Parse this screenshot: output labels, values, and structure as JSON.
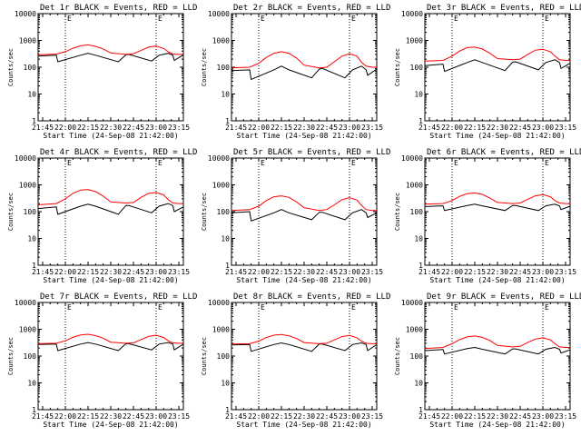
{
  "figure": {
    "background": "#ffffff",
    "axis_color": "#000000"
  },
  "chart_data": [
    {
      "type": "line",
      "title": "Det 1r BLACK = Events, RED = LLD",
      "xlabel": "Start Time (24-Sep-08 21:42:00)",
      "ylabel": "Counts/sec",
      "xlim": [
        "21:42",
        "23:18"
      ],
      "ylim": [
        1,
        10000
      ],
      "yscale": "log",
      "x_ticks": [
        "21:45",
        "22:00",
        "22:15",
        "22:30",
        "22:45",
        "23:00",
        "23:15"
      ],
      "y_ticks": [
        "1",
        "10",
        "100",
        "1000",
        "10000"
      ],
      "vlines": [
        "22:00",
        "23:00"
      ],
      "marker": "E",
      "series": [
        {
          "color": "#000000",
          "x": [
            "21:42",
            "21:54",
            "21:55",
            "22:10",
            "22:15",
            "22:20",
            "22:35",
            "22:40",
            "22:42",
            "22:57",
            "23:02",
            "23:08",
            "23:11",
            "23:12",
            "23:18"
          ],
          "y": [
            260,
            280,
            160,
            280,
            330,
            280,
            160,
            290,
            300,
            170,
            280,
            330,
            280,
            180,
            290
          ]
        },
        {
          "color": "#ff0000",
          "x": [
            "21:42",
            "21:54",
            "22:00",
            "22:05",
            "22:10",
            "22:15",
            "22:20",
            "22:25",
            "22:30",
            "22:40",
            "22:45",
            "22:50",
            "22:55",
            "23:00",
            "23:05",
            "23:08",
            "23:11",
            "23:15",
            "23:18"
          ],
          "y": [
            290,
            310,
            380,
            510,
            630,
            680,
            600,
            480,
            340,
            300,
            320,
            420,
            560,
            620,
            500,
            380,
            310,
            300,
            300
          ]
        }
      ]
    },
    {
      "type": "line",
      "title": "Det 2r BLACK = Events, RED = LLD",
      "xlabel": "Start Time (24-Sep-08 21:42:00)",
      "ylabel": "Counts/sec",
      "xlim": [
        "21:42",
        "23:18"
      ],
      "ylim": [
        1,
        10000
      ],
      "yscale": "log",
      "x_ticks": [
        "21:45",
        "22:00",
        "22:15",
        "22:30",
        "22:45",
        "23:00",
        "23:15"
      ],
      "y_ticks": [
        "1",
        "10",
        "100",
        "1000",
        "10000"
      ],
      "vlines": [
        "22:00",
        "23:00"
      ],
      "marker": "E",
      "series": [
        {
          "color": "#000000",
          "x": [
            "21:42",
            "21:54",
            "21:55",
            "22:10",
            "22:15",
            "22:20",
            "22:35",
            "22:40",
            "22:42",
            "22:57",
            "23:02",
            "23:08",
            "23:11",
            "23:12",
            "23:18"
          ],
          "y": [
            75,
            80,
            35,
            80,
            110,
            80,
            40,
            85,
            90,
            40,
            80,
            110,
            80,
            50,
            85
          ]
        },
        {
          "color": "#ff0000",
          "x": [
            "21:42",
            "21:54",
            "22:00",
            "22:05",
            "22:10",
            "22:15",
            "22:20",
            "22:25",
            "22:30",
            "22:40",
            "22:45",
            "22:50",
            "22:55",
            "23:00",
            "23:05",
            "23:08",
            "23:11",
            "23:15",
            "23:18"
          ],
          "y": [
            95,
            100,
            140,
            230,
            330,
            380,
            330,
            220,
            120,
            95,
            100,
            160,
            260,
            320,
            260,
            150,
            110,
            100,
            100
          ]
        }
      ]
    },
    {
      "type": "line",
      "title": "Det 3r BLACK = Events, RED = LLD",
      "xlabel": "Start Time (24-Sep-08 21:42:00)",
      "ylabel": "Counts/sec",
      "xlim": [
        "21:42",
        "23:18"
      ],
      "ylim": [
        1,
        10000
      ],
      "yscale": "log",
      "x_ticks": [
        "21:45",
        "22:00",
        "22:15",
        "22:30",
        "22:45",
        "23:00",
        "23:15"
      ],
      "y_ticks": [
        "1",
        "10",
        "100",
        "1000",
        "10000"
      ],
      "vlines": [
        "22:00",
        "23:00"
      ],
      "marker": "E",
      "series": [
        {
          "color": "#000000",
          "x": [
            "21:42",
            "21:54",
            "21:55",
            "22:10",
            "22:15",
            "22:20",
            "22:35",
            "22:40",
            "22:42",
            "22:57",
            "23:02",
            "23:08",
            "23:11",
            "23:12",
            "23:18"
          ],
          "y": [
            115,
            130,
            70,
            150,
            190,
            150,
            75,
            155,
            160,
            80,
            150,
            190,
            150,
            90,
            140
          ]
        },
        {
          "color": "#ff0000",
          "x": [
            "21:42",
            "21:54",
            "22:00",
            "22:05",
            "22:10",
            "22:15",
            "22:20",
            "22:25",
            "22:30",
            "22:40",
            "22:45",
            "22:50",
            "22:55",
            "23:00",
            "23:05",
            "23:08",
            "23:11",
            "23:15",
            "23:18"
          ],
          "y": [
            170,
            180,
            260,
            400,
            540,
            560,
            480,
            330,
            210,
            190,
            200,
            300,
            430,
            470,
            380,
            260,
            190,
            180,
            180
          ]
        }
      ]
    },
    {
      "type": "line",
      "title": "Det 4r BLACK = Events, RED = LLD",
      "xlabel": "Start Time (24-Sep-08 21:42:00)",
      "ylabel": "Counts/sec",
      "xlim": [
        "21:42",
        "23:18"
      ],
      "ylim": [
        1,
        10000
      ],
      "yscale": "log",
      "x_ticks": [
        "21:45",
        "22:00",
        "22:15",
        "22:30",
        "22:45",
        "23:00",
        "23:15"
      ],
      "y_ticks": [
        "1",
        "10",
        "100",
        "1000",
        "10000"
      ],
      "vlines": [
        "22:00",
        "23:00"
      ],
      "marker": "E",
      "series": [
        {
          "color": "#000000",
          "x": [
            "21:42",
            "21:54",
            "21:55",
            "22:10",
            "22:15",
            "22:20",
            "22:35",
            "22:40",
            "22:42",
            "22:57",
            "23:02",
            "23:08",
            "23:11",
            "23:12",
            "23:18"
          ],
          "y": [
            130,
            150,
            80,
            160,
            190,
            160,
            80,
            170,
            170,
            90,
            160,
            200,
            170,
            100,
            150
          ]
        },
        {
          "color": "#ff0000",
          "x": [
            "21:42",
            "21:54",
            "22:00",
            "22:05",
            "22:10",
            "22:15",
            "22:20",
            "22:25",
            "22:30",
            "22:40",
            "22:45",
            "22:50",
            "22:55",
            "23:00",
            "23:05",
            "23:08",
            "23:11",
            "23:15",
            "23:18"
          ],
          "y": [
            180,
            200,
            300,
            480,
            640,
            660,
            560,
            380,
            230,
            210,
            220,
            340,
            480,
            520,
            420,
            280,
            210,
            200,
            200
          ]
        }
      ]
    },
    {
      "type": "line",
      "title": "Det 5r BLACK = Events, RED = LLD",
      "xlabel": "Start Time (24-Sep-08 21:42:00)",
      "ylabel": "Counts/sec",
      "xlim": [
        "21:42",
        "23:18"
      ],
      "ylim": [
        1,
        10000
      ],
      "yscale": "log",
      "x_ticks": [
        "21:45",
        "22:00",
        "22:15",
        "22:30",
        "22:45",
        "23:00",
        "23:15"
      ],
      "y_ticks": [
        "1",
        "10",
        "100",
        "1000",
        "10000"
      ],
      "vlines": [
        "22:00",
        "23:00"
      ],
      "marker": "E",
      "series": [
        {
          "color": "#000000",
          "x": [
            "21:42",
            "21:54",
            "21:55",
            "22:10",
            "22:15",
            "22:20",
            "22:35",
            "22:40",
            "22:42",
            "22:57",
            "23:02",
            "23:08",
            "23:11",
            "23:12",
            "23:18"
          ],
          "y": [
            90,
            100,
            45,
            90,
            120,
            90,
            50,
            95,
            95,
            50,
            90,
            120,
            90,
            60,
            90
          ]
        },
        {
          "color": "#ff0000",
          "x": [
            "21:42",
            "21:54",
            "22:00",
            "22:05",
            "22:10",
            "22:15",
            "22:20",
            "22:25",
            "22:30",
            "22:40",
            "22:45",
            "22:50",
            "22:55",
            "23:00",
            "23:05",
            "23:08",
            "23:11",
            "23:15",
            "23:18"
          ],
          "y": [
            110,
            120,
            160,
            260,
            360,
            390,
            340,
            230,
            140,
            110,
            120,
            180,
            280,
            330,
            270,
            170,
            120,
            110,
            110
          ]
        }
      ]
    },
    {
      "type": "line",
      "title": "Det 6r BLACK = Events, RED = LLD",
      "xlabel": "Start Time (24-Sep-08 21:42:00)",
      "ylabel": "Counts/sec",
      "xlim": [
        "21:42",
        "23:18"
      ],
      "ylim": [
        1,
        10000
      ],
      "yscale": "log",
      "x_ticks": [
        "21:45",
        "22:00",
        "22:15",
        "22:30",
        "22:45",
        "23:00",
        "23:15"
      ],
      "y_ticks": [
        "1",
        "10",
        "100",
        "1000",
        "10000"
      ],
      "vlines": [
        "22:00",
        "23:00"
      ],
      "marker": "E",
      "series": [
        {
          "color": "#000000",
          "x": [
            "21:42",
            "21:54",
            "21:55",
            "22:10",
            "22:15",
            "22:20",
            "22:35",
            "22:40",
            "22:42",
            "22:57",
            "23:02",
            "23:08",
            "23:11",
            "23:12",
            "23:18"
          ],
          "y": [
            155,
            165,
            110,
            170,
            190,
            165,
            110,
            170,
            170,
            110,
            165,
            190,
            165,
            120,
            160
          ]
        },
        {
          "color": "#ff0000",
          "x": [
            "21:42",
            "21:54",
            "22:00",
            "22:05",
            "22:10",
            "22:15",
            "22:20",
            "22:25",
            "22:30",
            "22:40",
            "22:45",
            "22:50",
            "22:55",
            "23:00",
            "23:05",
            "23:08",
            "23:11",
            "23:15",
            "23:18"
          ],
          "y": [
            190,
            200,
            260,
            370,
            470,
            500,
            440,
            320,
            220,
            200,
            210,
            290,
            390,
            430,
            360,
            260,
            210,
            200,
            200
          ]
        }
      ]
    },
    {
      "type": "line",
      "title": "Det 7r BLACK = Events, RED = LLD",
      "xlabel": "Start Time (24-Sep-08 21:42:00)",
      "ylabel": "Counts/sec",
      "xlim": [
        "21:42",
        "23:18"
      ],
      "ylim": [
        1,
        10000
      ],
      "yscale": "log",
      "x_ticks": [
        "21:45",
        "22:00",
        "22:15",
        "22:30",
        "22:45",
        "23:00",
        "23:15"
      ],
      "y_ticks": [
        "1",
        "10",
        "100",
        "1000",
        "10000"
      ],
      "vlines": [
        "22:00",
        "23:00"
      ],
      "marker": "E",
      "series": [
        {
          "color": "#000000",
          "x": [
            "21:42",
            "21:54",
            "21:55",
            "22:10",
            "22:15",
            "22:20",
            "22:35",
            "22:40",
            "22:42",
            "22:57",
            "23:02",
            "23:08",
            "23:11",
            "23:12",
            "23:18"
          ],
          "y": [
            270,
            280,
            160,
            280,
            320,
            280,
            160,
            290,
            290,
            170,
            280,
            320,
            280,
            170,
            280
          ]
        },
        {
          "color": "#ff0000",
          "x": [
            "21:42",
            "21:54",
            "22:00",
            "22:05",
            "22:10",
            "22:15",
            "22:20",
            "22:25",
            "22:30",
            "22:40",
            "22:45",
            "22:50",
            "22:55",
            "23:00",
            "23:05",
            "23:08",
            "23:11",
            "23:15",
            "23:18"
          ],
          "y": [
            290,
            300,
            370,
            500,
            610,
            650,
            580,
            460,
            330,
            300,
            310,
            410,
            540,
            600,
            490,
            370,
            310,
            300,
            300
          ]
        }
      ]
    },
    {
      "type": "line",
      "title": "Det 8r BLACK = Events, RED = LLD",
      "xlabel": "Start Time (24-Sep-08 21:42:00)",
      "ylabel": "Counts/sec",
      "xlim": [
        "21:42",
        "23:18"
      ],
      "ylim": [
        1,
        10000
      ],
      "yscale": "log",
      "x_ticks": [
        "21:45",
        "22:00",
        "22:15",
        "22:30",
        "22:45",
        "23:00",
        "23:15"
      ],
      "y_ticks": [
        "1",
        "10",
        "100",
        "1000",
        "10000"
      ],
      "vlines": [
        "22:00",
        "23:00"
      ],
      "marker": "E",
      "series": [
        {
          "color": "#000000",
          "x": [
            "21:42",
            "21:54",
            "21:55",
            "22:10",
            "22:15",
            "22:20",
            "22:35",
            "22:40",
            "22:42",
            "22:57",
            "23:02",
            "23:08",
            "23:11",
            "23:12",
            "23:18"
          ],
          "y": [
            260,
            270,
            150,
            270,
            310,
            270,
            150,
            280,
            280,
            160,
            270,
            310,
            270,
            160,
            270
          ]
        },
        {
          "color": "#ff0000",
          "x": [
            "21:42",
            "21:54",
            "22:00",
            "22:05",
            "22:10",
            "22:15",
            "22:20",
            "22:25",
            "22:30",
            "22:40",
            "22:45",
            "22:50",
            "22:55",
            "23:00",
            "23:05",
            "23:08",
            "23:11",
            "23:15",
            "23:18"
          ],
          "y": [
            280,
            290,
            360,
            490,
            600,
            640,
            570,
            450,
            320,
            290,
            300,
            400,
            530,
            590,
            480,
            360,
            300,
            290,
            290
          ]
        }
      ]
    },
    {
      "type": "line",
      "title": "Det 9r BLACK = Events, RED = LLD",
      "xlabel": "Start Time (24-Sep-08 21:42:00)",
      "ylabel": "Counts/sec",
      "xlim": [
        "21:42",
        "23:18"
      ],
      "ylim": [
        1,
        10000
      ],
      "yscale": "log",
      "x_ticks": [
        "21:45",
        "22:00",
        "22:15",
        "22:30",
        "22:45",
        "23:00",
        "23:15"
      ],
      "y_ticks": [
        "1",
        "10",
        "100",
        "1000",
        "10000"
      ],
      "vlines": [
        "22:00",
        "23:00"
      ],
      "marker": "E",
      "series": [
        {
          "color": "#000000",
          "x": [
            "21:42",
            "21:54",
            "21:55",
            "22:10",
            "22:15",
            "22:20",
            "22:35",
            "22:40",
            "22:42",
            "22:57",
            "23:02",
            "23:08",
            "23:11",
            "23:12",
            "23:18"
          ],
          "y": [
            160,
            175,
            120,
            190,
            210,
            180,
            120,
            185,
            185,
            120,
            180,
            210,
            180,
            130,
            170
          ]
        },
        {
          "color": "#ff0000",
          "x": [
            "21:42",
            "21:54",
            "22:00",
            "22:05",
            "22:10",
            "22:15",
            "22:20",
            "22:25",
            "22:30",
            "22:40",
            "22:45",
            "22:50",
            "22:55",
            "23:00",
            "23:05",
            "23:08",
            "23:11",
            "23:15",
            "23:18"
          ],
          "y": [
            190,
            210,
            290,
            410,
            520,
            560,
            500,
            380,
            250,
            220,
            230,
            320,
            430,
            480,
            400,
            290,
            220,
            210,
            210
          ]
        }
      ]
    }
  ]
}
